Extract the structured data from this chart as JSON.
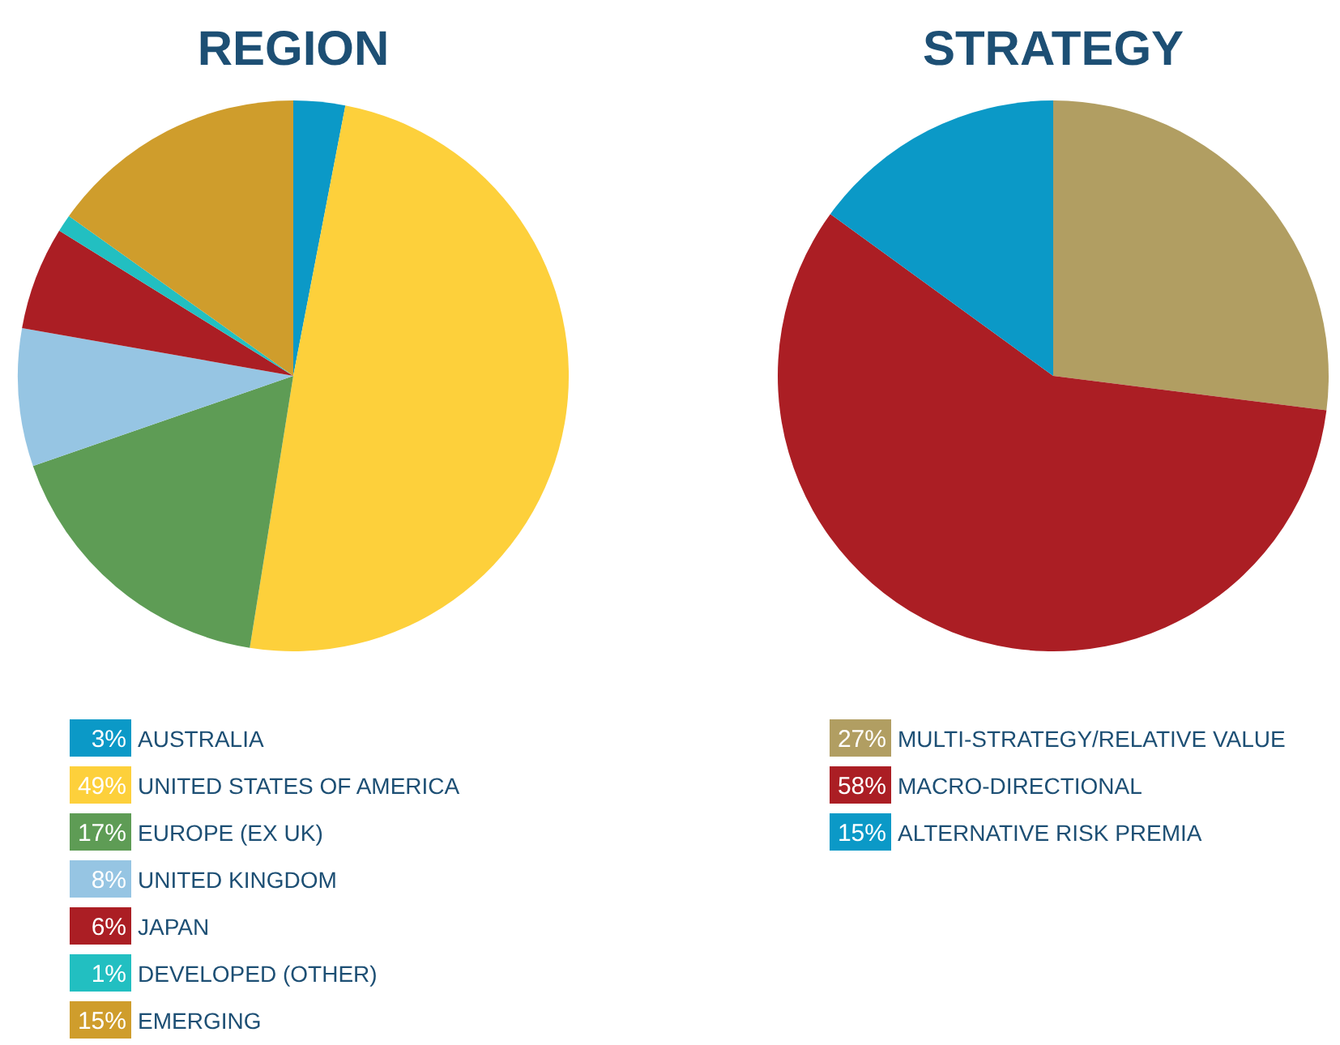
{
  "chart_data": [
    {
      "type": "pie",
      "title": "REGION",
      "categories": [
        "AUSTRALIA",
        "UNITED STATES OF AMERICA",
        "EUROPE (EX UK)",
        "UNITED KINGDOM",
        "JAPAN",
        "DEVELOPED (OTHER)",
        "EMERGING"
      ],
      "values": [
        3,
        49,
        17,
        8,
        6,
        1,
        15
      ],
      "colors": [
        "#0b99c7",
        "#fdd03b",
        "#5e9c55",
        "#96c5e3",
        "#ab1e24",
        "#22bfc1",
        "#cf9d2c"
      ],
      "value_labels": [
        "3%",
        "49%",
        "17%",
        "8%",
        "6%",
        "1%",
        "15%"
      ],
      "legend": "bottom"
    },
    {
      "type": "pie",
      "title": "STRATEGY",
      "categories": [
        "MULTI-STRATEGY/RELATIVE VALUE",
        "MACRO-DIRECTIONAL",
        "ALTERNATIVE RISK PREMIA"
      ],
      "values": [
        27,
        58,
        15
      ],
      "colors": [
        "#b19e62",
        "#ab1e24",
        "#0b99c7"
      ],
      "value_labels": [
        "27%",
        "58%",
        "15%"
      ],
      "legend": "bottom"
    }
  ]
}
